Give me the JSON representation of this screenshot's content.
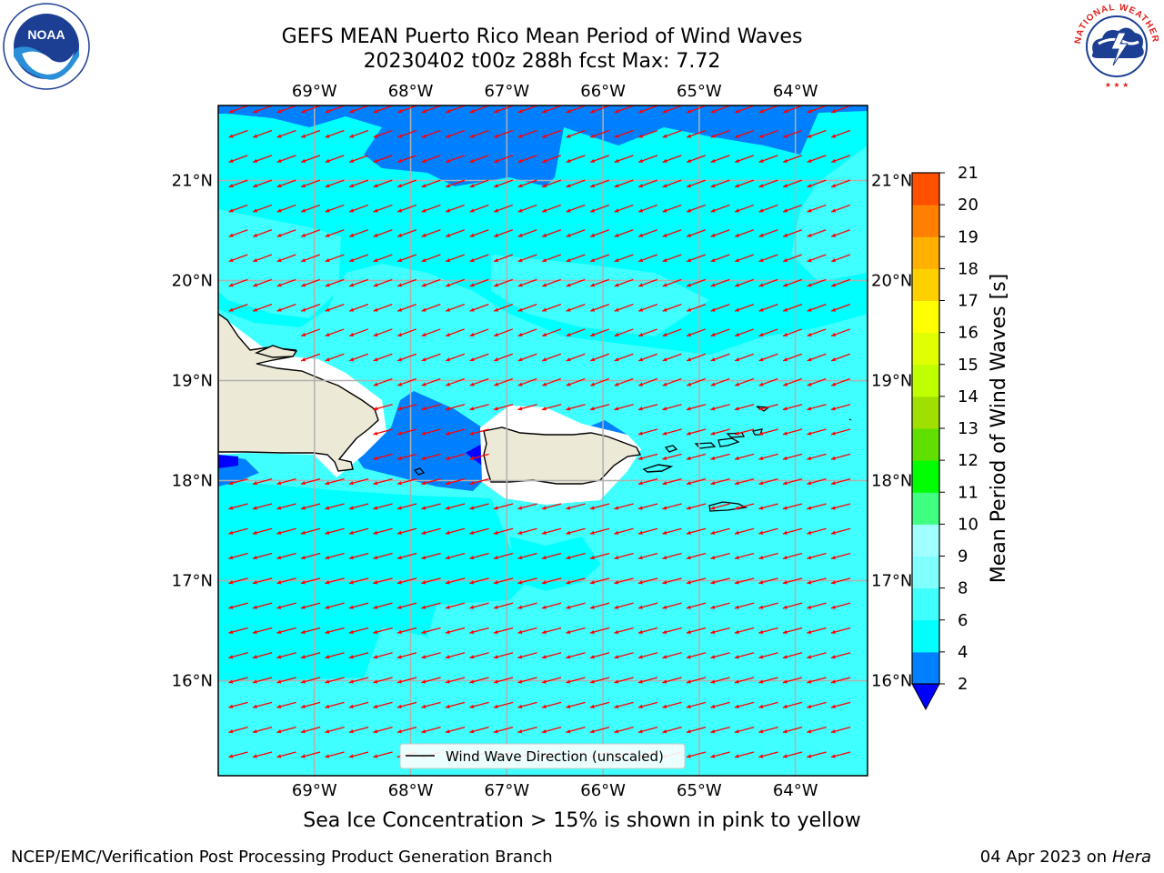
{
  "title": {
    "line1": "GEFS MEAN Puerto Rico Mean Period of Wind Waves",
    "line2": "20230402 t00z 288h fcst   Max: 7.72"
  },
  "map": {
    "lon_labels": [
      "69°W",
      "68°W",
      "67°W",
      "66°W",
      "65°W",
      "64°W"
    ],
    "lon_values": [
      -69,
      -68,
      -67,
      -66,
      -65,
      -64
    ],
    "lat_labels": [
      "21°N",
      "20°N",
      "19°N",
      "18°N",
      "17°N",
      "16°N"
    ],
    "lat_values": [
      21,
      20,
      19,
      18,
      17,
      16
    ],
    "lon_range": [
      -70,
      -63.25
    ],
    "lat_range": [
      15.05,
      21.75
    ],
    "vector_direction": "east-northeast to west-southwest",
    "legend_label": "Wind Wave Direction (unscaled)",
    "colors": {
      "land": "#ece9d6",
      "vector": "#ff0000",
      "gridline": "#b0b0b0",
      "field_low": "#0080ff",
      "field_mid": "#00ffff",
      "field_high": "#40ffff"
    }
  },
  "colorbar": {
    "label": "Mean Period of Wind Waves [s]",
    "tick_labels": [
      "2",
      "4",
      "6",
      "8",
      "9",
      "10",
      "11",
      "12",
      "13",
      "14",
      "15",
      "16",
      "17",
      "18",
      "19",
      "20",
      "21"
    ],
    "tick_values": [
      2,
      4,
      6,
      8,
      9,
      10,
      11,
      12,
      13,
      14,
      15,
      16,
      17,
      18,
      19,
      20,
      21
    ],
    "colors": [
      "#0080ff",
      "#00ffff",
      "#40ffff",
      "#80ffff",
      "#a0ffff",
      "#40ff80",
      "#00ff00",
      "#60e000",
      "#a0e000",
      "#c0ff00",
      "#e0ff00",
      "#ffff00",
      "#ffd000",
      "#ffb000",
      "#ff8000",
      "#ff5000",
      "#ff2000",
      "#ff0000"
    ],
    "under_color": "#0000ff"
  },
  "caption": "Sea Ice Concentration > 15% is shown in pink to yellow",
  "footer": {
    "left": "NCEP/EMC/Verification Post Processing Product Generation Branch",
    "date": "04 Apr 2023 on ",
    "machine": "Hera"
  },
  "logos": {
    "noaa_text": "NOAA",
    "nws_text": "NATIONAL WEATHER SERVICE"
  }
}
